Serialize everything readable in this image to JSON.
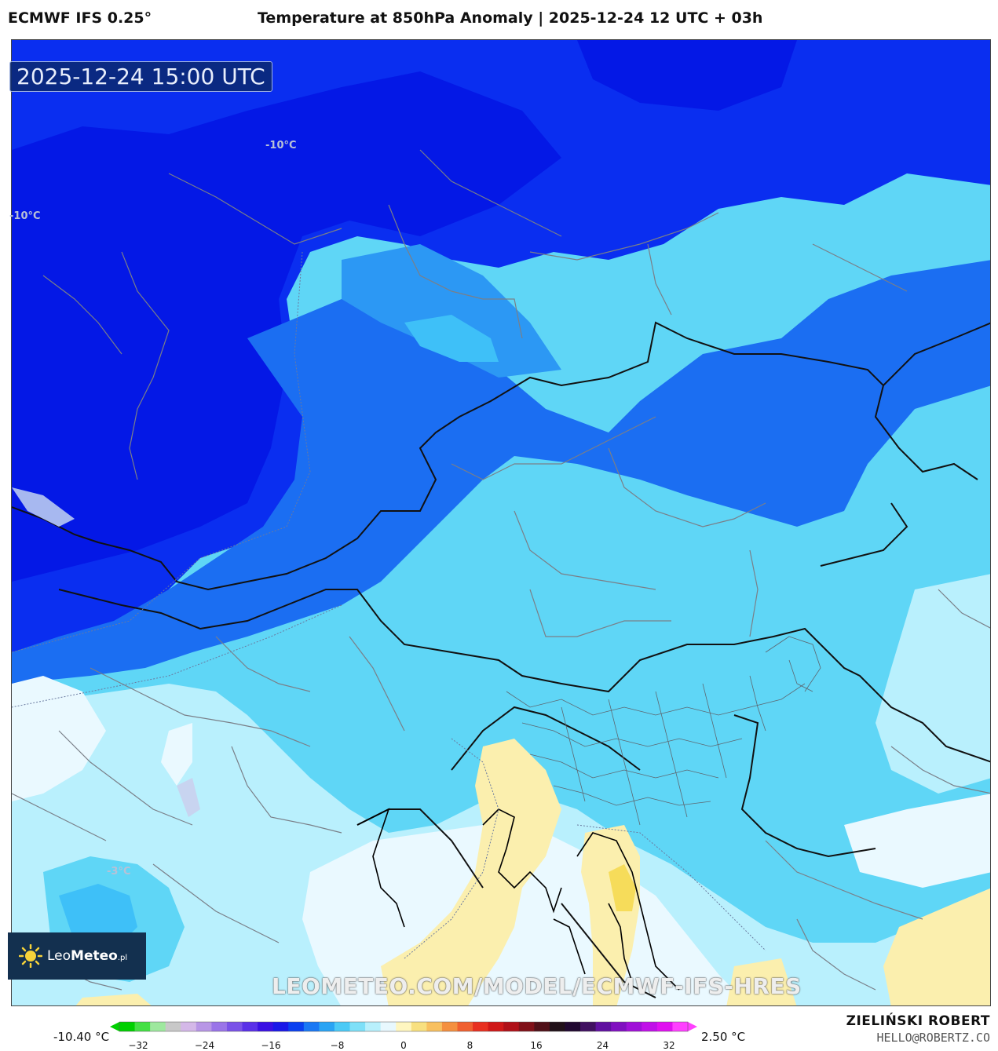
{
  "header": {
    "model": "ECMWF IFS 0.25°",
    "title": "Temperature at 850hPa Anomaly | 2025-12-24 12 UTC + 03h"
  },
  "map": {
    "valid_time": "2025-12-24 15:00 UTC",
    "contour_labels": [
      "-10°C",
      "-10°C",
      "-3°C"
    ],
    "watermark": "LEOMETEO.COM/MODEL/ECMWF-IFS-HRES"
  },
  "logo": {
    "name_light": "Leo",
    "name_bold": "Meteo",
    "suffix": ".pl"
  },
  "colorbar": {
    "min_label": "-10.40 °C",
    "max_label": "2.50 °C",
    "ticks": [
      "−32",
      "−24",
      "−16",
      "−8",
      "0",
      "8",
      "16",
      "24",
      "32"
    ],
    "colors": [
      "#00d000",
      "#44e044",
      "#9ee89e",
      "#c8c8c8",
      "#d4b8e8",
      "#b896e6",
      "#9a74e8",
      "#7a52e8",
      "#5a30e8",
      "#3a10e4",
      "#1a18e8",
      "#0a40f0",
      "#1a78f4",
      "#2aa4f4",
      "#4ccaf6",
      "#7ee0f8",
      "#b8f0fc",
      "#e8f8fe",
      "#fff6c0",
      "#f8e080",
      "#f8c060",
      "#f49040",
      "#f06030",
      "#e83020",
      "#d01818",
      "#b01018",
      "#801018",
      "#501018",
      "#201018",
      "#200830",
      "#401060",
      "#6010a0",
      "#8010c0",
      "#a010d8",
      "#c010e8",
      "#e010f0",
      "#ff40ff"
    ]
  },
  "credits": {
    "author": "ZIELIŃSKI ROBERT",
    "email": "HELLO@ROBERTZ.CO"
  }
}
